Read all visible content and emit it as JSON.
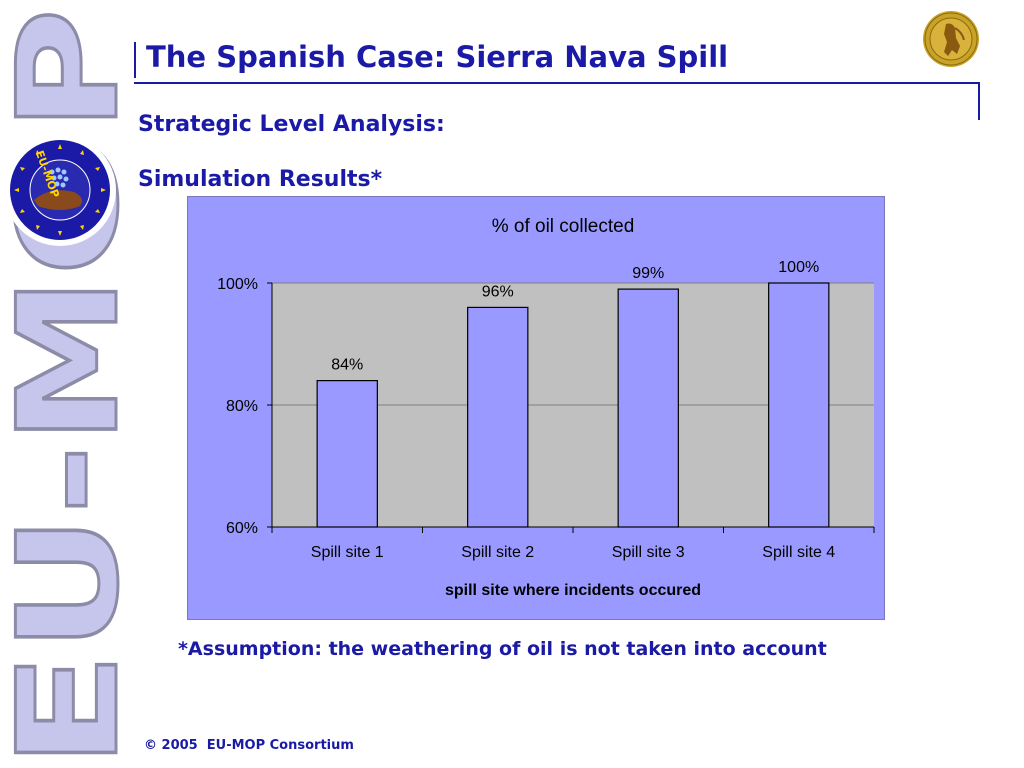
{
  "slide": {
    "title": "The Spanish Case: Sierra Nava Spill",
    "subtitle_1": "Strategic Level Analysis:",
    "subtitle_2": "Simulation Results*",
    "footnote": "*Assumption: the weathering of oil is not taken into account",
    "copyright": "© 2005  EU-MOP Consortium"
  },
  "brand": {
    "vertical_text": "EU-MOP",
    "logo_ring_text": "EU-MOP",
    "logo_icon": "eu-mop-logo-icon",
    "seal_icon": "university-seal-icon"
  },
  "colors": {
    "title": "#1a1aa6",
    "panel_bg": "#9999ff",
    "plot_bg": "#c0c0c0",
    "bar_fill": "#9999ff",
    "brand_letters": "#c6c6ec"
  },
  "chart_data": {
    "type": "bar",
    "title": "% of oil collected",
    "xlabel": "spill site where incidents occured",
    "ylabel": "",
    "categories": [
      "Spill  site 1",
      "Spill  site 2",
      "Spill  site 3",
      "Spill  site 4"
    ],
    "values": [
      84,
      96,
      99,
      100
    ],
    "data_labels": [
      "84%",
      "96%",
      "99%",
      "100%"
    ],
    "yticks": [
      60,
      80,
      100
    ],
    "ytick_labels": [
      "60%",
      "80%",
      "100%"
    ],
    "ylim": [
      60,
      100
    ],
    "grid": true,
    "legend": "none"
  }
}
